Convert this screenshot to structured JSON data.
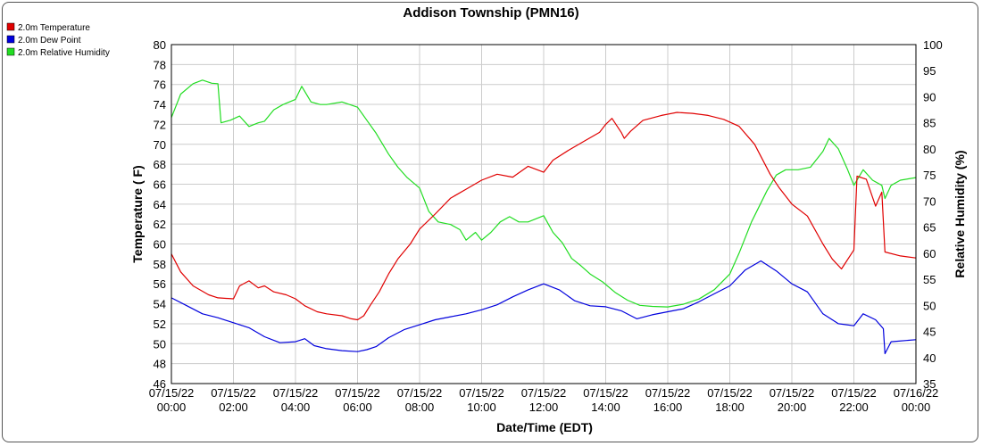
{
  "chart_data": {
    "type": "line",
    "title": "Addison Township (PMN16)",
    "xlabel": "Date/Time (EDT)",
    "ylabel": "Temperature ( F)",
    "y2label": "Relative Humidity (%)",
    "ylim": [
      46,
      80
    ],
    "y2lim": [
      35,
      100
    ],
    "grid": true,
    "legend_position": "top-left",
    "x_ticks": [
      {
        "hour": 0,
        "date": "07/15/22",
        "time": "00:00"
      },
      {
        "hour": 2,
        "date": "07/15/22",
        "time": "02:00"
      },
      {
        "hour": 4,
        "date": "07/15/22",
        "time": "04:00"
      },
      {
        "hour": 6,
        "date": "07/15/22",
        "time": "06:00"
      },
      {
        "hour": 8,
        "date": "07/15/22",
        "time": "08:00"
      },
      {
        "hour": 10,
        "date": "07/15/22",
        "time": "10:00"
      },
      {
        "hour": 12,
        "date": "07/15/22",
        "time": "12:00"
      },
      {
        "hour": 14,
        "date": "07/15/22",
        "time": "14:00"
      },
      {
        "hour": 16,
        "date": "07/15/22",
        "time": "16:00"
      },
      {
        "hour": 18,
        "date": "07/15/22",
        "time": "18:00"
      },
      {
        "hour": 20,
        "date": "07/15/22",
        "time": "20:00"
      },
      {
        "hour": 22,
        "date": "07/15/22",
        "time": "22:00"
      },
      {
        "hour": 24,
        "date": "07/16/22",
        "time": "00:00"
      }
    ],
    "y_ticks": [
      "46",
      "48",
      "50",
      "52",
      "54",
      "56",
      "58",
      "60",
      "62",
      "64",
      "66",
      "68",
      "70",
      "72",
      "74",
      "76",
      "78",
      "80"
    ],
    "y2_ticks": [
      "35",
      "40",
      "45",
      "50",
      "55",
      "60",
      "65",
      "70",
      "75",
      "80",
      "85",
      "90",
      "95",
      "100"
    ],
    "series": [
      {
        "name": "2.0m Temperature",
        "axis": "left",
        "color": "#e00000",
        "points": [
          [
            0,
            59
          ],
          [
            0.3,
            57.2
          ],
          [
            0.7,
            55.8
          ],
          [
            1.2,
            54.9
          ],
          [
            1.5,
            54.6
          ],
          [
            2,
            54.5
          ],
          [
            2.2,
            55.8
          ],
          [
            2.5,
            56.3
          ],
          [
            2.8,
            55.6
          ],
          [
            3,
            55.8
          ],
          [
            3.3,
            55.2
          ],
          [
            3.7,
            54.9
          ],
          [
            4,
            54.5
          ],
          [
            4.3,
            53.8
          ],
          [
            4.7,
            53.2
          ],
          [
            5,
            53
          ],
          [
            5.5,
            52.8
          ],
          [
            5.8,
            52.5
          ],
          [
            6,
            52.4
          ],
          [
            6.2,
            52.8
          ],
          [
            6.4,
            53.8
          ],
          [
            6.7,
            55.2
          ],
          [
            7,
            57
          ],
          [
            7.3,
            58.5
          ],
          [
            7.7,
            60
          ],
          [
            8,
            61.5
          ],
          [
            8.5,
            63
          ],
          [
            9,
            64.6
          ],
          [
            9.5,
            65.5
          ],
          [
            10,
            66.4
          ],
          [
            10.5,
            67
          ],
          [
            11,
            66.7
          ],
          [
            11.5,
            67.8
          ],
          [
            12,
            67.2
          ],
          [
            12.3,
            68.4
          ],
          [
            12.8,
            69.4
          ],
          [
            13.3,
            70.3
          ],
          [
            13.8,
            71.2
          ],
          [
            14,
            72
          ],
          [
            14.2,
            72.6
          ],
          [
            14.5,
            71.2
          ],
          [
            14.6,
            70.6
          ],
          [
            14.8,
            71.3
          ],
          [
            15.2,
            72.4
          ],
          [
            15.8,
            72.9
          ],
          [
            16.3,
            73.2
          ],
          [
            16.8,
            73.1
          ],
          [
            17.3,
            72.9
          ],
          [
            17.8,
            72.5
          ],
          [
            18.3,
            71.8
          ],
          [
            18.8,
            70
          ],
          [
            19.3,
            67
          ],
          [
            19.6,
            65.6
          ],
          [
            20,
            64
          ],
          [
            20.5,
            62.8
          ],
          [
            21,
            60
          ],
          [
            21.3,
            58.5
          ],
          [
            21.6,
            57.5
          ],
          [
            22,
            59.4
          ],
          [
            22.1,
            66.8
          ],
          [
            22.4,
            66.5
          ],
          [
            22.7,
            63.8
          ],
          [
            22.9,
            65.2
          ],
          [
            23,
            59.2
          ],
          [
            23.5,
            58.8
          ],
          [
            24,
            58.6
          ]
        ]
      },
      {
        "name": "2.0m Dew Point",
        "axis": "left",
        "color": "#0000dd",
        "points": [
          [
            0,
            54.6
          ],
          [
            0.5,
            53.8
          ],
          [
            1,
            53
          ],
          [
            1.5,
            52.6
          ],
          [
            2,
            52.1
          ],
          [
            2.5,
            51.6
          ],
          [
            3,
            50.7
          ],
          [
            3.5,
            50.1
          ],
          [
            4,
            50.2
          ],
          [
            4.3,
            50.5
          ],
          [
            4.6,
            49.8
          ],
          [
            5,
            49.5
          ],
          [
            5.5,
            49.3
          ],
          [
            6,
            49.2
          ],
          [
            6.3,
            49.4
          ],
          [
            6.6,
            49.7
          ],
          [
            7,
            50.6
          ],
          [
            7.5,
            51.4
          ],
          [
            8,
            51.9
          ],
          [
            8.5,
            52.4
          ],
          [
            9,
            52.7
          ],
          [
            9.5,
            53
          ],
          [
            10,
            53.4
          ],
          [
            10.5,
            53.9
          ],
          [
            11,
            54.7
          ],
          [
            11.5,
            55.4
          ],
          [
            12,
            56
          ],
          [
            12.5,
            55.4
          ],
          [
            13,
            54.3
          ],
          [
            13.5,
            53.8
          ],
          [
            14,
            53.7
          ],
          [
            14.5,
            53.3
          ],
          [
            15,
            52.5
          ],
          [
            15.5,
            52.9
          ],
          [
            16,
            53.2
          ],
          [
            16.5,
            53.5
          ],
          [
            17,
            54.2
          ],
          [
            17.5,
            55
          ],
          [
            18,
            55.8
          ],
          [
            18.5,
            57.4
          ],
          [
            19,
            58.3
          ],
          [
            19.5,
            57.3
          ],
          [
            20,
            56
          ],
          [
            20.5,
            55.2
          ],
          [
            21,
            53
          ],
          [
            21.5,
            52
          ],
          [
            22,
            51.8
          ],
          [
            22.3,
            53
          ],
          [
            22.7,
            52.4
          ],
          [
            22.95,
            51.5
          ],
          [
            23,
            49
          ],
          [
            23.2,
            50.2
          ],
          [
            24,
            50.4
          ]
        ]
      },
      {
        "name": "2.0m Relative Humidity",
        "axis": "right",
        "color": "#22dd22",
        "points": [
          [
            0,
            86
          ],
          [
            0.3,
            90.5
          ],
          [
            0.7,
            92.5
          ],
          [
            1,
            93.2
          ],
          [
            1.3,
            92.6
          ],
          [
            1.5,
            92.5
          ],
          [
            1.6,
            85
          ],
          [
            1.9,
            85.5
          ],
          [
            2.2,
            86.3
          ],
          [
            2.5,
            84.3
          ],
          [
            2.8,
            85
          ],
          [
            3,
            85.3
          ],
          [
            3.3,
            87.5
          ],
          [
            3.6,
            88.5
          ],
          [
            4,
            89.5
          ],
          [
            4.2,
            92
          ],
          [
            4.5,
            89
          ],
          [
            4.8,
            88.5
          ],
          [
            5,
            88.5
          ],
          [
            5.5,
            89
          ],
          [
            6,
            88
          ],
          [
            6.3,
            85.5
          ],
          [
            6.6,
            83
          ],
          [
            7,
            79
          ],
          [
            7.3,
            76.5
          ],
          [
            7.6,
            74.5
          ],
          [
            8,
            72.5
          ],
          [
            8.3,
            68
          ],
          [
            8.6,
            66
          ],
          [
            9,
            65.5
          ],
          [
            9.3,
            64.5
          ],
          [
            9.5,
            62.5
          ],
          [
            9.8,
            64
          ],
          [
            10,
            62.5
          ],
          [
            10.3,
            64
          ],
          [
            10.6,
            66
          ],
          [
            10.9,
            67
          ],
          [
            11.2,
            66
          ],
          [
            11.5,
            66
          ],
          [
            12,
            67.2
          ],
          [
            12.3,
            64
          ],
          [
            12.6,
            62
          ],
          [
            12.9,
            59
          ],
          [
            13.2,
            57.6
          ],
          [
            13.5,
            56
          ],
          [
            13.9,
            54.5
          ],
          [
            14.3,
            52.5
          ],
          [
            14.7,
            51
          ],
          [
            15.1,
            50
          ],
          [
            15.5,
            49.8
          ],
          [
            16,
            49.7
          ],
          [
            16.5,
            50.2
          ],
          [
            17,
            51.2
          ],
          [
            17.5,
            53
          ],
          [
            18,
            56
          ],
          [
            18.3,
            60
          ],
          [
            18.7,
            66
          ],
          [
            19.2,
            72
          ],
          [
            19.5,
            75
          ],
          [
            19.8,
            76
          ],
          [
            20.2,
            76
          ],
          [
            20.6,
            76.5
          ],
          [
            21,
            79.5
          ],
          [
            21.2,
            82
          ],
          [
            21.5,
            80
          ],
          [
            21.8,
            76
          ],
          [
            22,
            73
          ],
          [
            22.3,
            76
          ],
          [
            22.6,
            74
          ],
          [
            22.9,
            73
          ],
          [
            23,
            70.5
          ],
          [
            23.2,
            73
          ],
          [
            23.5,
            74
          ],
          [
            24,
            74.5
          ]
        ]
      }
    ]
  }
}
